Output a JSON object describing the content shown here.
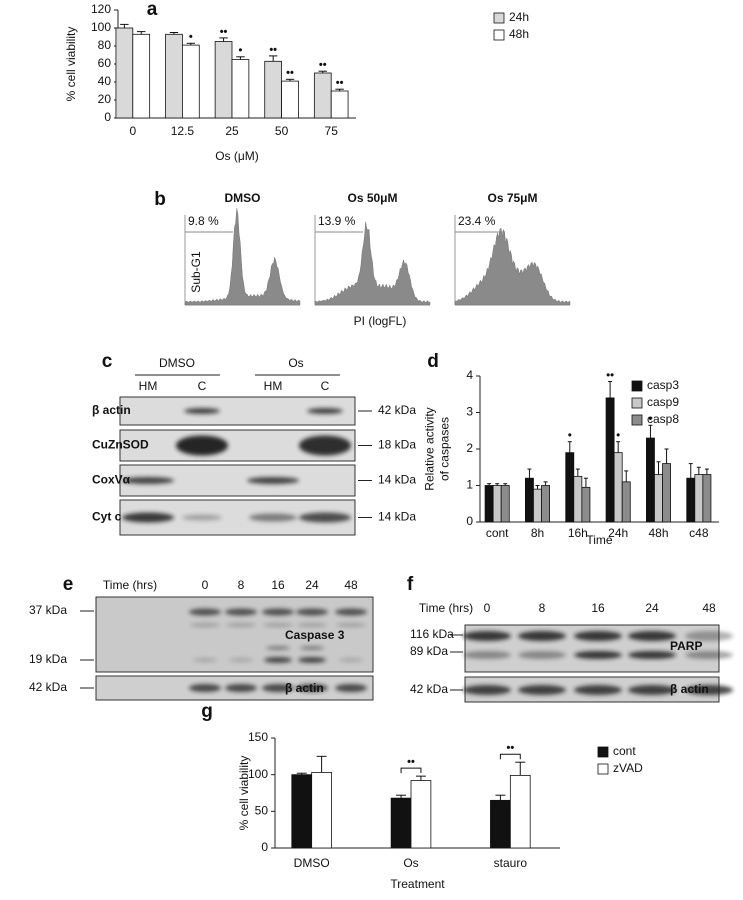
{
  "chart_data": [
    {
      "panel": "a",
      "type": "bar",
      "categories": [
        "0",
        "12.5",
        "25",
        "50",
        "75"
      ],
      "series": [
        {
          "name": "24h",
          "color": "#d9d9d9",
          "values": [
            100,
            93,
            85,
            63,
            50
          ],
          "errors": [
            4,
            2,
            4,
            6,
            2
          ],
          "markers": [
            null,
            null,
            "••",
            "••",
            "••"
          ]
        },
        {
          "name": "48h",
          "color": "#ffffff",
          "values": [
            93,
            81,
            65,
            41,
            30
          ],
          "errors": [
            3,
            2,
            3,
            2,
            2
          ],
          "markers": [
            null,
            "•",
            "•",
            "••",
            "••"
          ]
        }
      ],
      "ylim": [
        0,
        120
      ],
      "yticks": [
        0,
        20,
        40,
        60,
        80,
        100,
        120
      ],
      "y_label": [
        "% cell viability"
      ],
      "x_label": "Os (μM)",
      "legend": "upper right"
    },
    {
      "panel": "d",
      "type": "bar",
      "categories": [
        "cont",
        "8h",
        "16h",
        "24h",
        "48h",
        "c48"
      ],
      "series": [
        {
          "name": "casp3",
          "color": "#111111",
          "values": [
            1,
            1.2,
            1.9,
            3.4,
            2.3,
            1.2
          ],
          "errors": [
            0.05,
            0.25,
            0.3,
            0.45,
            0.35,
            0.4
          ],
          "markers": [
            null,
            null,
            "•",
            "••",
            "•",
            null
          ]
        },
        {
          "name": "casp9",
          "color": "#c8c8c8",
          "values": [
            1,
            0.9,
            1.25,
            1.9,
            1.3,
            1.3
          ],
          "errors": [
            0.05,
            0.1,
            0.2,
            0.3,
            0.35,
            0.2
          ],
          "markers": [
            null,
            null,
            null,
            "•",
            null,
            null
          ]
        },
        {
          "name": "casp8",
          "color": "#8c8c8c",
          "values": [
            1,
            1.0,
            0.95,
            1.1,
            1.6,
            1.3
          ],
          "errors": [
            0.05,
            0.1,
            0.25,
            0.3,
            0.4,
            0.15
          ],
          "markers": [
            null,
            null,
            null,
            null,
            null,
            null
          ]
        }
      ],
      "ylim": [
        0,
        4
      ],
      "yticks": [
        0,
        1,
        2,
        3,
        4
      ],
      "y_label": [
        "Relative activity",
        "of caspases"
      ],
      "x_label": "Time",
      "legend": "upper right"
    },
    {
      "panel": "g",
      "type": "bar",
      "categories": [
        "DMSO",
        "Os",
        "stauro"
      ],
      "series": [
        {
          "name": "cont",
          "color": "#111111",
          "values": [
            100,
            68,
            65
          ],
          "errors": [
            2,
            4,
            7
          ]
        },
        {
          "name": "zVAD",
          "color": "#ffffff",
          "values": [
            103,
            92,
            99
          ],
          "errors": [
            22,
            6,
            18
          ]
        }
      ],
      "significance": [
        null,
        "••",
        "••"
      ],
      "ylim": [
        0,
        150
      ],
      "yticks": [
        0,
        50,
        100,
        150
      ],
      "y_label": [
        "% cell viability"
      ],
      "x_label": "Treatment",
      "legend": "upper right"
    }
  ],
  "flow": {
    "panel": "b",
    "titles": [
      "DMSO",
      "Os 50μM",
      "Os 75μM"
    ],
    "percents": [
      "9.8 %",
      "13.9 %",
      "23.4 %"
    ],
    "y_label": "Sub-G1",
    "x_label": "PI (logFL)"
  },
  "blot_c": {
    "panel": "c",
    "groups": [
      "DMSO",
      "Os"
    ],
    "lanes": [
      "HM",
      "C",
      "HM",
      "C"
    ],
    "rows": [
      {
        "label": "β actin",
        "size": "42 kDa"
      },
      {
        "label": "CuZnSOD",
        "size": "18 kDa"
      },
      {
        "label": "CoxVα",
        "size": "14 kDa"
      },
      {
        "label": "Cyt c",
        "size": "14 kDa"
      }
    ]
  },
  "blot_e": {
    "panel": "e",
    "time_label": "Time (hrs)",
    "times": [
      "0",
      "8",
      "16",
      "24",
      "48"
    ],
    "markers": [
      "37 kDa",
      "19 kDa",
      "42 kDa"
    ],
    "labels": [
      "Caspase 3",
      "β actin"
    ]
  },
  "blot_f": {
    "panel": "f",
    "time_label": "Time (hrs)",
    "times": [
      "0",
      "8",
      "16",
      "24",
      "48"
    ],
    "markers": [
      "116 kDa",
      "89 kDa",
      "42 kDa"
    ],
    "labels": [
      "PARP",
      "β actin"
    ]
  }
}
